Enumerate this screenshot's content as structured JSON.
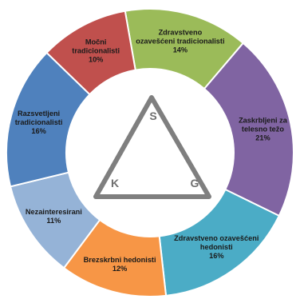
{
  "chart_data": {
    "type": "pie",
    "title": "",
    "segments": [
      {
        "label": [
          "Zdravstveno",
          "ozavešćeni tradicionalisti"
        ],
        "value": 14,
        "value_label": "14%",
        "color": "#9bbb59"
      },
      {
        "label": [
          "Zaskrbljeni za",
          "telesno težo"
        ],
        "value": 21,
        "value_label": "21%",
        "color": "#8064a2"
      },
      {
        "label": [
          "Zdravstveno ozavešćeni",
          "hedonisti"
        ],
        "value": 16,
        "value_label": "16%",
        "color": "#4bacc6"
      },
      {
        "label": [
          "Brezskrbni hedonisti"
        ],
        "value": 12,
        "value_label": "12%",
        "color": "#f79646"
      },
      {
        "label": [
          "Nezainteresirani"
        ],
        "value": 11,
        "value_label": "11%",
        "color": "#95b3d7"
      },
      {
        "label": [
          "Razsvetljeni",
          "tradicionalisti"
        ],
        "value": 16,
        "value_label": "16%",
        "color": "#4f81bd"
      },
      {
        "label": [
          "Močni",
          "tradicionalisti"
        ],
        "value": 10,
        "value_label": "10%",
        "color": "#c0504d"
      }
    ],
    "center_triangle": {
      "vertices": [
        "S",
        "K",
        "G"
      ],
      "color": "#7f7f7f"
    },
    "legend": "none",
    "grid": false
  }
}
